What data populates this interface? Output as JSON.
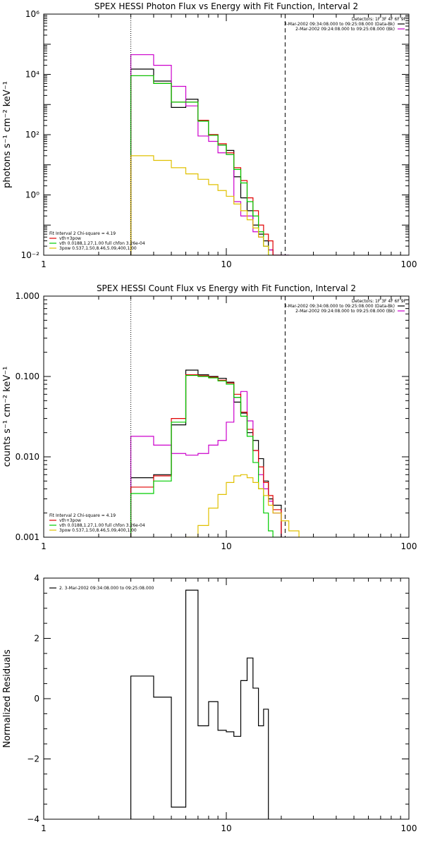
{
  "chart_data": [
    {
      "id": "p1",
      "type": "line",
      "title": "SPEX HESSI Photon Flux vs Energy with Fit Function, Interval 2",
      "xlabel": "",
      "ylabel": "photons s⁻¹ cm⁻² keV⁻¹",
      "xscale": "log",
      "yscale": "log",
      "xlim": [
        1,
        100
      ],
      "ylim": [
        0.01,
        1000000
      ],
      "yticks": [
        0.01,
        1,
        100,
        10000,
        1000000
      ],
      "ytick_labels": [
        "10⁻²",
        "10⁰",
        "10²",
        "10⁴",
        "10⁶"
      ],
      "xticks": [
        1,
        10,
        100
      ],
      "xtick_labels": [
        "1",
        "10",
        "100"
      ],
      "vlines": [
        {
          "x": 3,
          "style": "dotted"
        },
        {
          "x": 21,
          "style": "dashed"
        }
      ],
      "legend_top": {
        "position": "top-right",
        "lines": [
          {
            "text": "Detectors: 1F 3F 4F 6F 9F",
            "color": null
          },
          {
            "text": "3-Mar-2002 09:34:08.000 to 09:25:08.000 (Data-Bk)",
            "color": "#000000"
          },
          {
            "text": "2-Mar-2002 09:24:08.000 to 09:25:08.000 (Bk)",
            "color": "#cc00cc"
          }
        ]
      },
      "legend_bottom": {
        "position": "bottom-left",
        "lines": [
          {
            "text": "Fit Interval 2   Chi-square = 4.19",
            "color": null
          },
          {
            "text": "vth+3pow",
            "color": "#e00000"
          },
          {
            "text": "vth 0.0188,1.27,1.00  full chfon 3.26e-04",
            "color": "#00cc00"
          },
          {
            "text": "3pow 0.537,1.50,8.46,5.09,400,1.00",
            "color": "#e0c000"
          }
        ]
      },
      "bin_edges": [
        3,
        4,
        5,
        6,
        7,
        8,
        9,
        10,
        11,
        12,
        13,
        14,
        15,
        16,
        17,
        18,
        20,
        22,
        25
      ],
      "series": [
        {
          "name": "Data-Bk",
          "color": "#000000",
          "values": [
            15000,
            6000,
            800,
            1500,
            300,
            100,
            45,
            30,
            4,
            0.8,
            0.3,
            0.1,
            0.05,
            0.03,
            0.015,
            0.01,
            0.01,
            null
          ]
        },
        {
          "name": "Bk",
          "color": "#cc00cc",
          "values": [
            45000,
            20000,
            4000,
            900,
            90,
            60,
            25,
            22,
            0.6,
            0.2,
            0.2,
            0.06,
            0.04,
            0.02,
            0.015,
            0.01,
            0.01,
            null
          ]
        },
        {
          "name": "vth+3pow",
          "color": "#e00000",
          "values": [
            9000,
            5000,
            1200,
            1200,
            300,
            100,
            50,
            25,
            8,
            3,
            0.8,
            0.3,
            0.1,
            0.05,
            0.03,
            0.01,
            null,
            null
          ]
        },
        {
          "name": "vth",
          "color": "#00cc00",
          "values": [
            9000,
            5000,
            1200,
            1200,
            280,
            95,
            45,
            22,
            7,
            2.5,
            0.6,
            0.2,
            0.06,
            0.02,
            0.01,
            null,
            null,
            null
          ]
        },
        {
          "name": "3pow",
          "color": "#e0c000",
          "values": [
            20,
            14,
            8,
            5,
            3.3,
            2.2,
            1.4,
            0.9,
            0.5,
            0.3,
            0.15,
            0.08,
            0.04,
            0.02,
            null,
            null,
            null,
            null
          ]
        }
      ]
    },
    {
      "id": "p2",
      "type": "line",
      "title": "SPEX HESSI Count Flux vs Energy with Fit Function, Interval 2",
      "xlabel": "",
      "ylabel": "counts s⁻¹ cm⁻² keV⁻¹",
      "xscale": "log",
      "yscale": "log",
      "xlim": [
        1,
        100
      ],
      "ylim": [
        0.001,
        1
      ],
      "yticks": [
        0.001,
        0.01,
        0.1,
        1
      ],
      "ytick_labels": [
        "0.001",
        "0.010",
        "0.100",
        "1.000"
      ],
      "xticks": [
        1,
        10,
        100
      ],
      "xtick_labels": [
        "1",
        "10",
        "100"
      ],
      "vlines": [
        {
          "x": 3,
          "style": "dotted"
        },
        {
          "x": 21,
          "style": "dashed"
        }
      ],
      "legend_top": {
        "position": "top-right",
        "lines": [
          {
            "text": "Detectors: 1F 3F 4F 6F 9F",
            "color": null
          },
          {
            "text": "3-Mar-2002 09:34:08.000 to 09:25:08.000 (Data-Bk)",
            "color": "#000000"
          },
          {
            "text": "2-Mar-2002 09:24:08.000 to 09:25:08.000 (Bk)",
            "color": "#cc00cc"
          }
        ]
      },
      "legend_bottom": {
        "position": "bottom-left",
        "lines": [
          {
            "text": "Fit Interval 2   Chi-square = 4.19",
            "color": null
          },
          {
            "text": "vth+3pow",
            "color": "#e00000"
          },
          {
            "text": "vth 0.0188,1.27,1.00  full chfon 3.26e-04",
            "color": "#00cc00"
          },
          {
            "text": "3pow 0.537,1.50,8.46,5.09,400,1.00",
            "color": "#e0c000"
          }
        ]
      },
      "bin_edges": [
        3,
        4,
        5,
        6,
        7,
        8,
        9,
        10,
        11,
        12,
        13,
        14,
        15,
        16,
        17,
        18,
        20,
        22,
        25
      ],
      "series": [
        {
          "name": "Data-Bk",
          "color": "#000000",
          "values": [
            0.0055,
            0.006,
            0.025,
            0.12,
            0.105,
            0.1,
            0.095,
            0.085,
            0.048,
            0.035,
            0.02,
            0.016,
            0.0095,
            0.005,
            0.003,
            0.0025,
            null,
            null
          ]
        },
        {
          "name": "Bk",
          "color": "#cc00cc",
          "values": [
            0.018,
            0.014,
            0.011,
            0.0105,
            0.011,
            0.014,
            0.016,
            0.027,
            0.055,
            0.065,
            0.028,
            0.012,
            0.006,
            0.004,
            0.0028,
            0.002,
            null,
            null
          ]
        },
        {
          "name": "vth+3pow",
          "color": "#e00000",
          "values": [
            0.0042,
            0.0058,
            0.03,
            0.105,
            0.102,
            0.098,
            0.09,
            0.083,
            0.06,
            0.036,
            0.022,
            0.012,
            0.0075,
            0.0048,
            0.0033,
            0.0022,
            null,
            null
          ]
        },
        {
          "name": "vth",
          "color": "#00cc00",
          "values": [
            0.0035,
            0.005,
            0.027,
            0.103,
            0.1,
            0.096,
            0.088,
            0.08,
            0.055,
            0.032,
            0.018,
            0.0085,
            0.004,
            0.002,
            0.0012,
            0.001,
            null,
            null
          ]
        },
        {
          "name": "3pow",
          "color": "#e0c000",
          "values": [
            null,
            null,
            null,
            0.001,
            0.0014,
            0.0023,
            0.0034,
            0.0048,
            0.0058,
            0.006,
            0.0055,
            0.0048,
            0.004,
            0.0033,
            0.0025,
            0.002,
            0.0016,
            0.0012
          ]
        }
      ]
    },
    {
      "id": "p3",
      "type": "line",
      "title": "",
      "xlabel": "",
      "ylabel": "Normalized Residuals",
      "xscale": "log",
      "yscale": "linear",
      "xlim": [
        1,
        100
      ],
      "ylim": [
        -4,
        4
      ],
      "yticks": [
        -4,
        -2,
        0,
        2,
        4
      ],
      "ytick_labels": [
        "−4",
        "−2",
        "0",
        "2",
        "4"
      ],
      "xticks": [
        1,
        10,
        100
      ],
      "xtick_labels": [
        "1",
        "10",
        "100"
      ],
      "vlines": [],
      "legend_top": {
        "position": "top-left",
        "lines": [
          {
            "text": "2. 3-Mar-2002 09:34:08.000 to 09:25:08.000",
            "color": "#000000"
          }
        ]
      },
      "legend_bottom": null,
      "bin_edges": [
        3,
        4,
        5,
        6,
        7,
        8,
        9,
        10,
        11,
        12,
        13,
        14,
        15,
        16,
        17,
        18,
        20
      ],
      "series": [
        {
          "name": "residuals",
          "color": "#000000",
          "values": [
            0.75,
            0.05,
            -3.6,
            3.6,
            -0.9,
            -0.1,
            -1.05,
            -1.1,
            -1.25,
            0.6,
            1.35,
            0.35,
            -0.9,
            -0.35,
            null,
            null
          ]
        }
      ]
    }
  ]
}
